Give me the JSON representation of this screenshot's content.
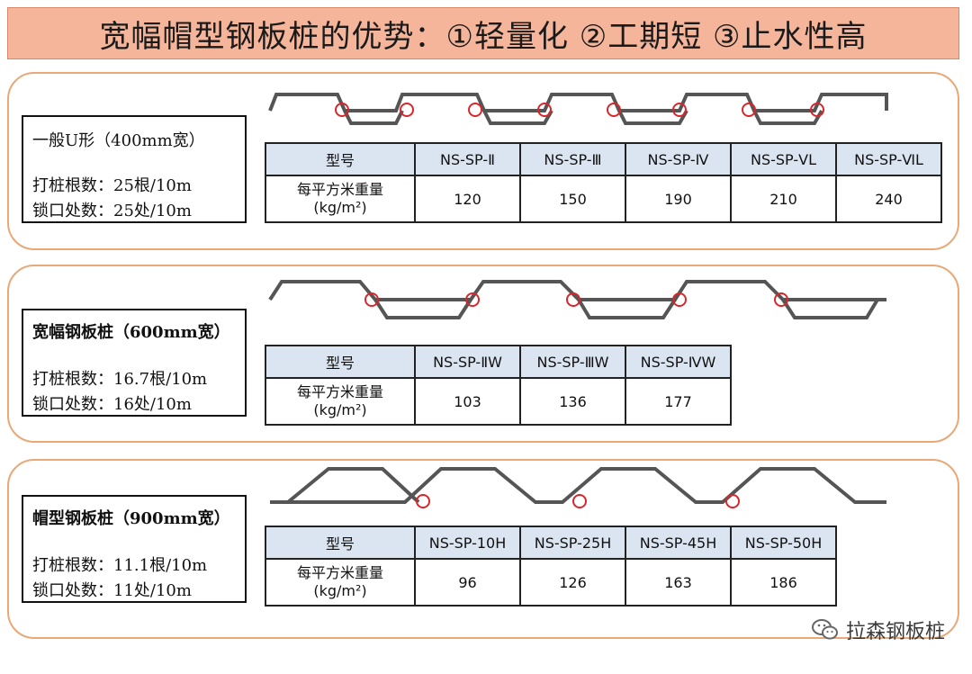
{
  "title": "宽幅帽型钢板桩的优势：①轻量化 ②工期短 ③止水性高",
  "sections": [
    {
      "heading": "一般U形（400mm宽）",
      "pile_count": "打桩根数：25根/10m",
      "joint_count": "锁口处数：25处/10m",
      "table": {
        "header_label": "型号",
        "row_label_line1": "每平方米重量",
        "row_label_line2": "(kg/m²)",
        "models": [
          "NS-SP-Ⅱ",
          "NS-SP-Ⅲ",
          "NS-SP-Ⅳ",
          "NS-SP-ⅤL",
          "NS-SP-ⅥL"
        ],
        "weights": [
          "120",
          "150",
          "190",
          "210",
          "240"
        ]
      }
    },
    {
      "heading": "宽幅钢板桩（600mm宽）",
      "pile_count": "打桩根数：16.7根/10m",
      "joint_count": "锁口处数：16处/10m",
      "table": {
        "header_label": "型号",
        "row_label_line1": "每平方米重量",
        "row_label_line2": "(kg/m²)",
        "models": [
          "NS-SP-ⅡW",
          "NS-SP-ⅢW",
          "NS-SP-ⅣW"
        ],
        "weights": [
          "103",
          "136",
          "177"
        ]
      }
    },
    {
      "heading": "帽型钢板桩（900mm宽）",
      "pile_count": "打桩根数：11.1根/10m",
      "joint_count": "锁口处数：11处/10m",
      "table": {
        "header_label": "型号",
        "row_label_line1": "每平方米重量",
        "row_label_line2": "(kg/m²)",
        "models": [
          "NS-SP-10H",
          "NS-SP-25H",
          "NS-SP-45H",
          "NS-SP-50H"
        ],
        "weights": [
          "96",
          "126",
          "163",
          "186"
        ]
      }
    }
  ],
  "watermark": "拉森钢板桩",
  "watermark_icon": "wechat-icon",
  "colors": {
    "title_bg": "#f4b59a",
    "panel_border": "#e8a878",
    "table_header_bg": "#dbe5f1",
    "joint_circle": "#d9262b",
    "profile_stroke": "#555555"
  }
}
